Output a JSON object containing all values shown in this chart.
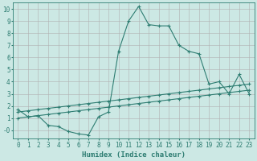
{
  "xlabel": "Humidex (Indice chaleur)",
  "ylabel": "",
  "background_color": "#cce8e4",
  "grid_color": "#b0b0b0",
  "line_color": "#2e7d72",
  "xlim": [
    -0.5,
    23.5
  ],
  "ylim": [
    -0.7,
    10.5
  ],
  "x_ticks": [
    0,
    1,
    2,
    3,
    4,
    5,
    6,
    7,
    8,
    9,
    10,
    11,
    12,
    13,
    14,
    15,
    16,
    17,
    18,
    19,
    20,
    21,
    22,
    23
  ],
  "y_ticks": [
    0,
    1,
    2,
    3,
    4,
    5,
    6,
    7,
    8,
    9,
    10
  ],
  "y_tick_labels": [
    "-0",
    "1",
    "2",
    "3",
    "4",
    "5",
    "6",
    "7",
    "8",
    "9",
    "10"
  ],
  "series1_x": [
    0,
    1,
    2,
    3,
    4,
    5,
    6,
    7,
    8,
    9,
    10,
    11,
    12,
    13,
    14,
    15,
    16,
    17,
    18,
    19,
    20,
    21,
    22,
    23
  ],
  "series1_y": [
    1.7,
    1.1,
    1.2,
    0.4,
    0.3,
    -0.1,
    -0.3,
    -0.4,
    1.1,
    1.5,
    6.5,
    9.0,
    10.2,
    8.7,
    8.6,
    8.6,
    7.0,
    6.5,
    6.3,
    3.8,
    4.0,
    3.0,
    4.6,
    3.0
  ],
  "series2_x": [
    0,
    1,
    2,
    3,
    4,
    5,
    6,
    7,
    8,
    9,
    10,
    11,
    12,
    13,
    14,
    15,
    16,
    17,
    18,
    19,
    20,
    21,
    22,
    23
  ],
  "series2_y": [
    1.5,
    1.6,
    1.7,
    1.8,
    1.9,
    2.0,
    2.1,
    2.2,
    2.3,
    2.4,
    2.5,
    2.6,
    2.7,
    2.8,
    2.9,
    3.0,
    3.1,
    3.2,
    3.3,
    3.4,
    3.5,
    3.6,
    3.7,
    3.8
  ],
  "series3_x": [
    0,
    1,
    2,
    3,
    4,
    5,
    6,
    7,
    8,
    9,
    10,
    11,
    12,
    13,
    14,
    15,
    16,
    17,
    18,
    19,
    20,
    21,
    22,
    23
  ],
  "series3_y": [
    1.0,
    1.1,
    1.2,
    1.3,
    1.4,
    1.5,
    1.6,
    1.7,
    1.8,
    1.9,
    2.0,
    2.1,
    2.2,
    2.3,
    2.4,
    2.5,
    2.6,
    2.7,
    2.8,
    2.9,
    3.0,
    3.1,
    3.2,
    3.3
  ],
  "font_size": 6,
  "tick_font_size": 5.5,
  "xlabel_font_size": 6.5
}
